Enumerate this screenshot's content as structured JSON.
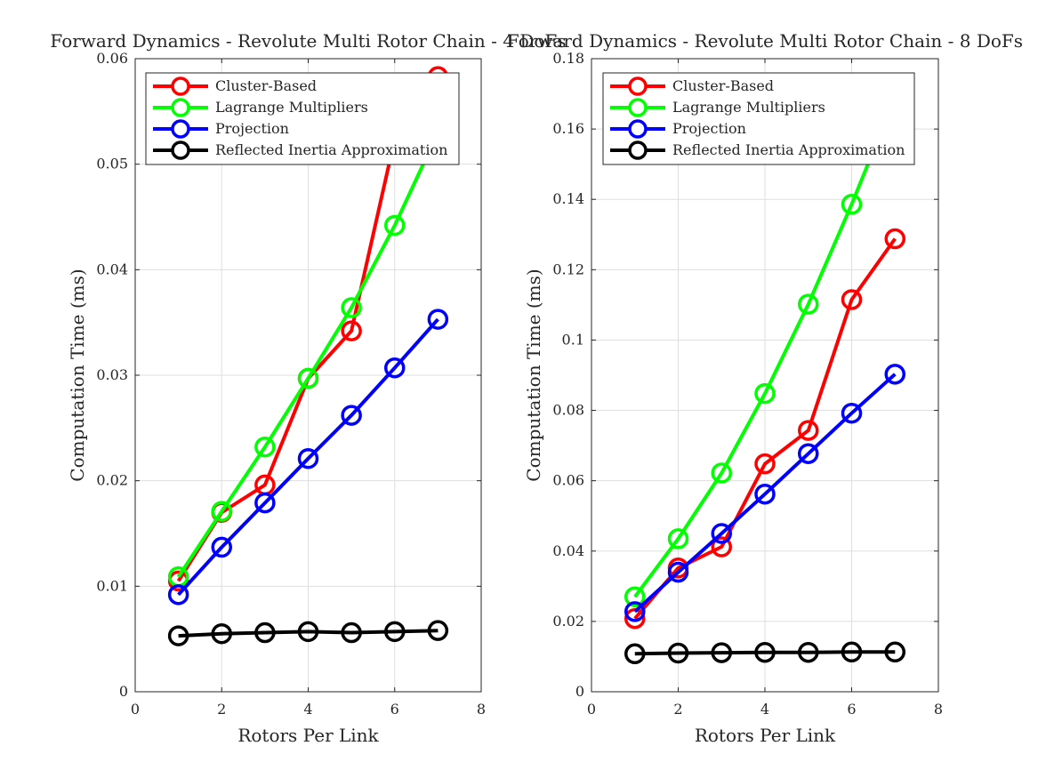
{
  "chart_data": [
    {
      "type": "line",
      "title": "Forward Dynamics - Revolute Multi Rotor Chain - 4 DoFs",
      "xlabel": "Rotors Per Link",
      "ylabel": "Computation Time (ms)",
      "xlim": [
        0,
        8
      ],
      "ylim": [
        0,
        0.06
      ],
      "xticks": [
        0,
        2,
        4,
        6,
        8
      ],
      "yticks": [
        0,
        0.01,
        0.02,
        0.03,
        0.04,
        0.05,
        0.06
      ],
      "xtick_labels": [
        "0",
        "2",
        "4",
        "6",
        "8"
      ],
      "ytick_labels": [
        "0",
        "0.01",
        "0.02",
        "0.03",
        "0.04",
        "0.05",
        "0.06"
      ],
      "grid": true,
      "legend_position": "top-left",
      "x": [
        1,
        2,
        3,
        4,
        5,
        6,
        7
      ],
      "series": [
        {
          "name": "Cluster-Based",
          "color": "#ff0000",
          "values": [
            0.0105,
            0.017,
            0.0196,
            0.0297,
            0.0342,
            0.0524,
            0.0583
          ]
        },
        {
          "name": "Lagrange Multipliers",
          "color": "#00ff00",
          "values": [
            0.0109,
            0.0171,
            0.0232,
            0.0297,
            0.0364,
            0.0442,
            0.053
          ]
        },
        {
          "name": "Projection",
          "color": "#0000ff",
          "values": [
            0.0092,
            0.0137,
            0.0179,
            0.0221,
            0.0262,
            0.0307,
            0.0353
          ]
        },
        {
          "name": "Reflected Inertia Approximation",
          "color": "#000000",
          "values": [
            0.0053,
            0.0055,
            0.0056,
            0.0057,
            0.0056,
            0.0057,
            0.0058
          ]
        }
      ]
    },
    {
      "type": "line",
      "title": "Forward Dynamics - Revolute Multi Rotor Chain - 8 DoFs",
      "xlabel": "Rotors Per Link",
      "ylabel": "Computation Time (ms)",
      "xlim": [
        0,
        8
      ],
      "ylim": [
        0,
        0.18
      ],
      "xticks": [
        0,
        2,
        4,
        6,
        8
      ],
      "yticks": [
        0,
        0.02,
        0.04,
        0.06,
        0.08,
        0.1,
        0.12,
        0.14,
        0.16,
        0.18
      ],
      "xtick_labels": [
        "0",
        "2",
        "4",
        "6",
        "8"
      ],
      "ytick_labels": [
        "0",
        "0.02",
        "0.04",
        "0.06",
        "0.08",
        "0.1",
        "0.12",
        "0.14",
        "0.16",
        "0.18"
      ],
      "grid": true,
      "legend_position": "top-left",
      "x": [
        1,
        2,
        3,
        4,
        5,
        6,
        7
      ],
      "series": [
        {
          "name": "Cluster-Based",
          "color": "#ff0000",
          "values": [
            0.0208,
            0.0352,
            0.0412,
            0.0648,
            0.0743,
            0.1115,
            0.1288
          ]
        },
        {
          "name": "Lagrange Multipliers",
          "color": "#00ff00",
          "values": [
            0.027,
            0.0435,
            0.0622,
            0.0848,
            0.1102,
            0.1386,
            0.169
          ]
        },
        {
          "name": "Projection",
          "color": "#0000ff",
          "values": [
            0.0228,
            0.034,
            0.045,
            0.0562,
            0.0677,
            0.0792,
            0.0903
          ]
        },
        {
          "name": "Reflected Inertia Approximation",
          "color": "#000000",
          "values": [
            0.0108,
            0.011,
            0.0111,
            0.0112,
            0.0112,
            0.0113,
            0.0113
          ]
        }
      ]
    }
  ]
}
